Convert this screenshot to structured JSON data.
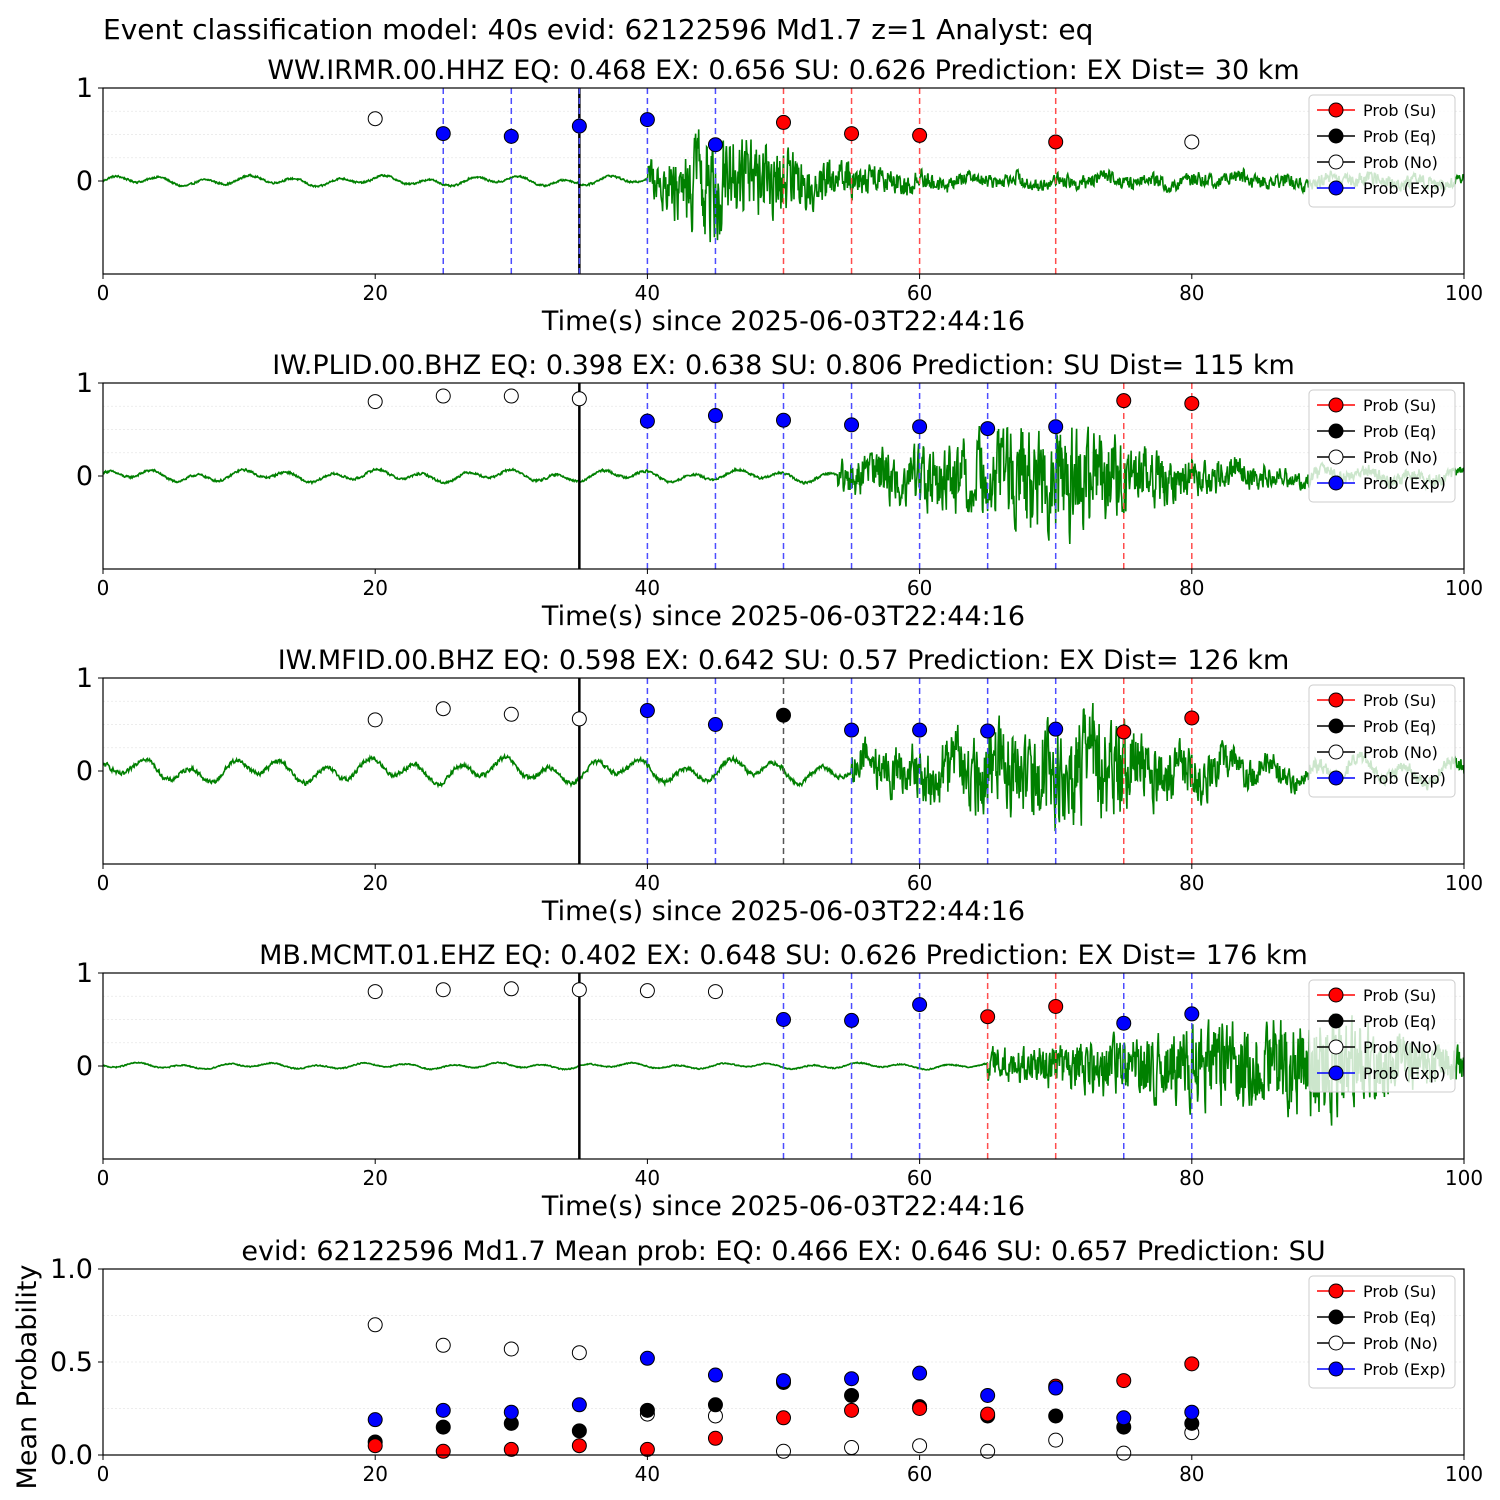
{
  "figure_title": "Event classification model: 40s evid: 62122596 Md1.7 z=1 Analyst: eq",
  "colors": {
    "waveform": "#008000",
    "su": "#ff0000",
    "eq": "#000000",
    "no": "#ffffff",
    "exp": "#0000ff",
    "origin_line": "#000000"
  },
  "legend_labels": [
    "Prob (Su)",
    "Prob (Eq)",
    "Prob (No)",
    "Prob (Exp)"
  ],
  "chart_data": [
    {
      "type": "scatter",
      "title": "WW.IRMR.00.HHZ   EQ: 0.468  EX: 0.656  SU: 0.626   Prediction: EX    Dist= 30 km",
      "xlabel": "Time(s) since 2025-06-03T22:44:16",
      "ylabel": "",
      "xlim": [
        0,
        100
      ],
      "ylim": [
        -1,
        1
      ],
      "x_ticks": [
        0,
        20,
        40,
        60,
        80,
        100
      ],
      "y_ticks": [
        0,
        1
      ],
      "origin_time": 35,
      "waveform": {
        "onset": 40,
        "peak_time": 44.5,
        "peak_amp": 0.95,
        "noise": 0.05
      },
      "points": [
        {
          "x": 20,
          "y": 0.67,
          "class": "no"
        },
        {
          "x": 25,
          "y": 0.51,
          "class": "exp"
        },
        {
          "x": 30,
          "y": 0.48,
          "class": "exp"
        },
        {
          "x": 35,
          "y": 0.59,
          "class": "exp"
        },
        {
          "x": 40,
          "y": 0.66,
          "class": "exp"
        },
        {
          "x": 45,
          "y": 0.39,
          "class": "exp"
        },
        {
          "x": 50,
          "y": 0.63,
          "class": "su"
        },
        {
          "x": 55,
          "y": 0.51,
          "class": "su"
        },
        {
          "x": 60,
          "y": 0.49,
          "class": "su"
        },
        {
          "x": 70,
          "y": 0.42,
          "class": "su"
        },
        {
          "x": 80,
          "y": 0.42,
          "class": "no"
        }
      ],
      "legend_position": "top-right"
    },
    {
      "type": "scatter",
      "title": "IW.PLID.00.BHZ   EQ: 0.398  EX: 0.638  SU: 0.806   Prediction: SU    Dist= 115 km",
      "xlabel": "Time(s) since 2025-06-03T22:44:16",
      "ylabel": "",
      "xlim": [
        0,
        100
      ],
      "ylim": [
        -1,
        1
      ],
      "x_ticks": [
        0,
        20,
        40,
        60,
        80,
        100
      ],
      "y_ticks": [
        0,
        1
      ],
      "origin_time": 35,
      "waveform": {
        "onset": 54,
        "peak_time": 71,
        "peak_amp": 0.95,
        "noise": 0.06
      },
      "points": [
        {
          "x": 20,
          "y": 0.8,
          "class": "no"
        },
        {
          "x": 25,
          "y": 0.86,
          "class": "no"
        },
        {
          "x": 30,
          "y": 0.86,
          "class": "no"
        },
        {
          "x": 35,
          "y": 0.83,
          "class": "no"
        },
        {
          "x": 40,
          "y": 0.59,
          "class": "exp"
        },
        {
          "x": 45,
          "y": 0.65,
          "class": "exp"
        },
        {
          "x": 50,
          "y": 0.6,
          "class": "exp"
        },
        {
          "x": 55,
          "y": 0.55,
          "class": "exp"
        },
        {
          "x": 60,
          "y": 0.53,
          "class": "exp"
        },
        {
          "x": 65,
          "y": 0.51,
          "class": "exp"
        },
        {
          "x": 70,
          "y": 0.53,
          "class": "exp"
        },
        {
          "x": 75,
          "y": 0.81,
          "class": "su"
        },
        {
          "x": 80,
          "y": 0.78,
          "class": "su"
        }
      ],
      "legend_position": "top-right"
    },
    {
      "type": "scatter",
      "title": "IW.MFID.00.BHZ   EQ: 0.598  EX: 0.642  SU: 0.57   Prediction: EX    Dist= 126 km",
      "xlabel": "Time(s) since 2025-06-03T22:44:16",
      "ylabel": "",
      "xlim": [
        0,
        100
      ],
      "ylim": [
        -1,
        1
      ],
      "x_ticks": [
        0,
        20,
        40,
        60,
        80,
        100
      ],
      "y_ticks": [
        0,
        1
      ],
      "origin_time": 35,
      "waveform": {
        "onset": 55,
        "peak_time": 72,
        "peak_amp": 0.95,
        "noise": 0.12
      },
      "points": [
        {
          "x": 20,
          "y": 0.55,
          "class": "no"
        },
        {
          "x": 25,
          "y": 0.67,
          "class": "no"
        },
        {
          "x": 30,
          "y": 0.61,
          "class": "no"
        },
        {
          "x": 35,
          "y": 0.56,
          "class": "no"
        },
        {
          "x": 40,
          "y": 0.65,
          "class": "exp"
        },
        {
          "x": 45,
          "y": 0.5,
          "class": "exp"
        },
        {
          "x": 50,
          "y": 0.6,
          "class": "eq"
        },
        {
          "x": 55,
          "y": 0.44,
          "class": "exp"
        },
        {
          "x": 60,
          "y": 0.44,
          "class": "exp"
        },
        {
          "x": 65,
          "y": 0.43,
          "class": "exp"
        },
        {
          "x": 70,
          "y": 0.45,
          "class": "exp"
        },
        {
          "x": 75,
          "y": 0.42,
          "class": "su"
        },
        {
          "x": 80,
          "y": 0.57,
          "class": "su"
        }
      ],
      "legend_position": "top-right"
    },
    {
      "type": "scatter",
      "title": "MB.MCMT.01.EHZ   EQ: 0.402  EX: 0.648  SU: 0.626   Prediction: EX    Dist= 176 km",
      "xlabel": "Time(s) since 2025-06-03T22:44:16",
      "ylabel": "",
      "xlim": [
        0,
        100
      ],
      "ylim": [
        -1,
        1
      ],
      "x_ticks": [
        0,
        20,
        40,
        60,
        80,
        100
      ],
      "y_ticks": [
        0,
        1
      ],
      "origin_time": 35,
      "waveform": {
        "onset": 65,
        "peak_time": 90,
        "peak_amp": 0.9,
        "noise": 0.03
      },
      "points": [
        {
          "x": 20,
          "y": 0.8,
          "class": "no"
        },
        {
          "x": 25,
          "y": 0.82,
          "class": "no"
        },
        {
          "x": 30,
          "y": 0.83,
          "class": "no"
        },
        {
          "x": 35,
          "y": 0.82,
          "class": "no"
        },
        {
          "x": 40,
          "y": 0.81,
          "class": "no"
        },
        {
          "x": 45,
          "y": 0.8,
          "class": "no"
        },
        {
          "x": 50,
          "y": 0.5,
          "class": "exp"
        },
        {
          "x": 55,
          "y": 0.49,
          "class": "exp"
        },
        {
          "x": 60,
          "y": 0.66,
          "class": "exp"
        },
        {
          "x": 65,
          "y": 0.53,
          "class": "su"
        },
        {
          "x": 70,
          "y": 0.64,
          "class": "su"
        },
        {
          "x": 75,
          "y": 0.46,
          "class": "exp"
        },
        {
          "x": 80,
          "y": 0.56,
          "class": "exp"
        }
      ],
      "legend_position": "top-right"
    },
    {
      "type": "scatter",
      "title": "evid: 62122596  Md1.7   Mean prob:   EQ: 0.466  EX: 0.646  SU: 0.657   Prediction: SU",
      "xlabel": "",
      "ylabel": "Mean Probability",
      "xlim": [
        0,
        100
      ],
      "ylim": [
        0,
        1
      ],
      "x_ticks": [
        0,
        20,
        40,
        60,
        80,
        100
      ],
      "y_ticks": [
        0.0,
        0.5,
        1.0
      ],
      "x": [
        20,
        25,
        30,
        35,
        40,
        45,
        50,
        55,
        60,
        65,
        70,
        75,
        80
      ],
      "series": [
        {
          "name": "Prob (No)",
          "class": "no",
          "values": [
            0.7,
            0.59,
            0.57,
            0.55,
            0.22,
            0.21,
            0.02,
            0.04,
            0.05,
            0.02,
            0.08,
            0.01,
            0.12
          ]
        },
        {
          "name": "Prob (Eq)",
          "class": "eq",
          "values": [
            0.07,
            0.15,
            0.17,
            0.13,
            0.24,
            0.27,
            0.39,
            0.32,
            0.26,
            0.21,
            0.21,
            0.15,
            0.17
          ]
        },
        {
          "name": "Prob (Su)",
          "class": "su",
          "values": [
            0.05,
            0.02,
            0.03,
            0.05,
            0.03,
            0.09,
            0.2,
            0.24,
            0.25,
            0.22,
            0.37,
            0.4,
            0.49
          ]
        },
        {
          "name": "Prob (Exp)",
          "class": "exp",
          "values": [
            0.19,
            0.24,
            0.23,
            0.27,
            0.52,
            0.43,
            0.4,
            0.41,
            0.44,
            0.32,
            0.36,
            0.2,
            0.23
          ]
        }
      ],
      "legend_position": "top-right"
    }
  ]
}
